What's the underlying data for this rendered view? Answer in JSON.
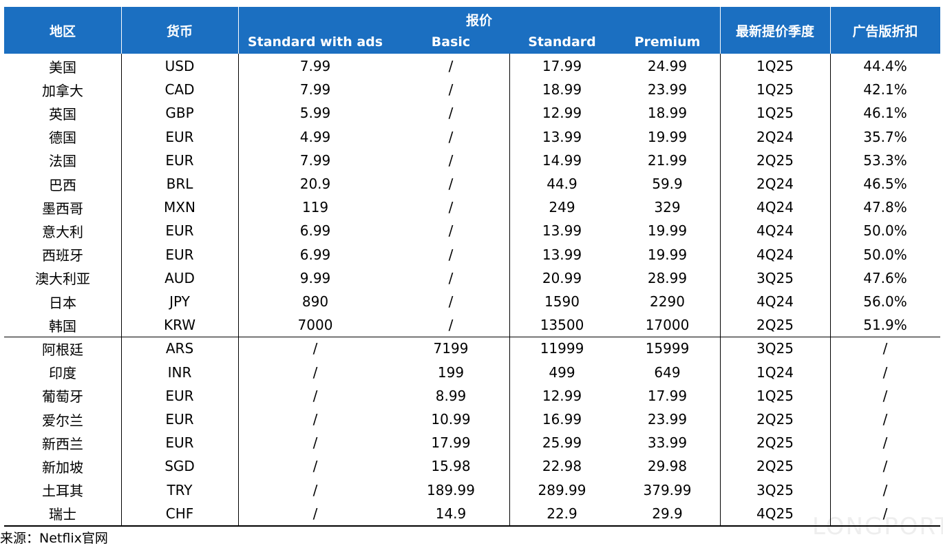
{
  "table": {
    "header": {
      "region": "地区",
      "currency": "货币",
      "price": "报价",
      "plans": [
        "Standard with ads",
        "Basic",
        "Standard",
        "Premium"
      ],
      "latest": "最新提价季度",
      "discount": "广告版折扣"
    },
    "rows": [
      [
        "美国",
        "USD",
        "7.99",
        "/",
        "17.99",
        "24.99",
        "1Q25",
        "44.4%"
      ],
      [
        "加拿大",
        "CAD",
        "7.99",
        "/",
        "18.99",
        "23.99",
        "1Q25",
        "42.1%"
      ],
      [
        "英国",
        "GBP",
        "5.99",
        "/",
        "12.99",
        "18.99",
        "1Q25",
        "46.1%"
      ],
      [
        "德国",
        "EUR",
        "4.99",
        "/",
        "13.99",
        "19.99",
        "2Q24",
        "35.7%"
      ],
      [
        "法国",
        "EUR",
        "7.99",
        "/",
        "14.99",
        "21.99",
        "2Q25",
        "53.3%"
      ],
      [
        "巴西",
        "BRL",
        "20.9",
        "/",
        "44.9",
        "59.9",
        "2Q24",
        "46.5%"
      ],
      [
        "墨西哥",
        "MXN",
        "119",
        "/",
        "249",
        "329",
        "4Q24",
        "47.8%"
      ],
      [
        "意大利",
        "EUR",
        "6.99",
        "/",
        "13.99",
        "19.99",
        "4Q24",
        "50.0%"
      ],
      [
        "西班牙",
        "EUR",
        "6.99",
        "/",
        "13.99",
        "19.99",
        "4Q24",
        "50.0%"
      ],
      [
        "澳大利亚",
        "AUD",
        "9.99",
        "/",
        "20.99",
        "28.99",
        "3Q25",
        "47.6%"
      ],
      [
        "日本",
        "JPY",
        "890",
        "/",
        "1590",
        "2290",
        "4Q24",
        "56.0%"
      ],
      [
        "韩国",
        "KRW",
        "7000",
        "/",
        "13500",
        "17000",
        "2Q25",
        "51.9%"
      ],
      [
        "阿根廷",
        "ARS",
        "/",
        "7199",
        "11999",
        "15999",
        "3Q25",
        "/"
      ],
      [
        "印度",
        "INR",
        "/",
        "199",
        "499",
        "649",
        "1Q24",
        "/"
      ],
      [
        "葡萄牙",
        "EUR",
        "/",
        "8.99",
        "12.99",
        "17.99",
        "1Q25",
        "/"
      ],
      [
        "爱尔兰",
        "EUR",
        "/",
        "10.99",
        "16.99",
        "23.99",
        "2Q25",
        "/"
      ],
      [
        "新西兰",
        "EUR",
        "/",
        "17.99",
        "25.99",
        "33.99",
        "2Q25",
        "/"
      ],
      [
        "新加坡",
        "SGD",
        "/",
        "15.98",
        "22.98",
        "29.98",
        "2Q25",
        "/"
      ],
      [
        "土耳其",
        "TRY",
        "/",
        "189.99",
        "289.99",
        "379.99",
        "3Q25",
        "/"
      ],
      [
        "瑞士",
        "CHF",
        "/",
        "14.9",
        "22.9",
        "29.9",
        "4Q25",
        "/"
      ]
    ]
  },
  "source": "来源：Netflix官网",
  "watermark": "LONGPORT"
}
